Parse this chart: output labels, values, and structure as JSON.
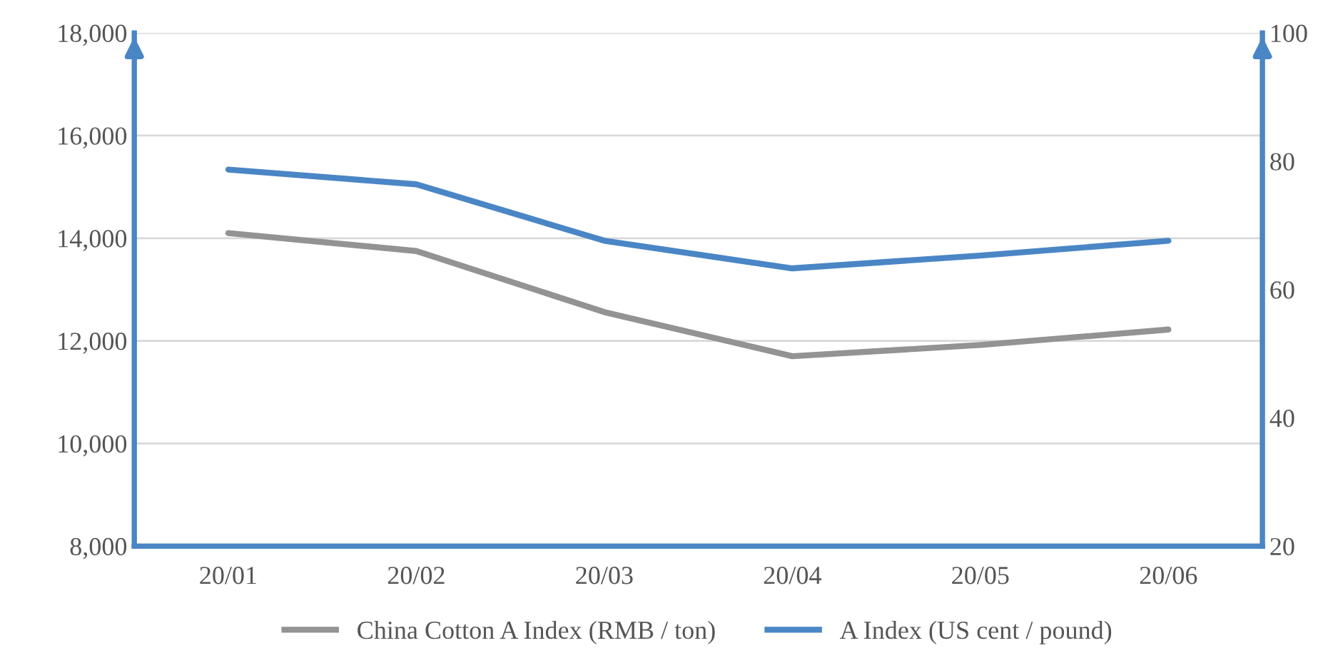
{
  "chart_data": {
    "type": "line",
    "categories": [
      "20/01",
      "20/02",
      "20/03",
      "20/04",
      "20/05",
      "20/06"
    ],
    "series": [
      {
        "name": "China Cotton A Index (RMB / ton)",
        "color": "#939393",
        "values": [
          14100,
          13750,
          12560,
          11700,
          11920,
          12220
        ]
      },
      {
        "name": "A Index (US cent / pound)",
        "color": "#4a86c5",
        "values": [
          78.7,
          76.4,
          67.6,
          63.3,
          65.3,
          67.6
        ],
        "axis": "y2"
      }
    ],
    "ylim": [
      8000,
      18000
    ],
    "yticks": [
      {
        "value": 8000,
        "label": "8,000"
      },
      {
        "value": 10000,
        "label": "10,000"
      },
      {
        "value": 12000,
        "label": "12,000"
      },
      {
        "value": 14000,
        "label": "14,000"
      },
      {
        "value": 16000,
        "label": "16,000"
      },
      {
        "value": 18000,
        "label": "18,000"
      }
    ],
    "y2lim": [
      20,
      100
    ],
    "y2ticks": [
      20,
      40,
      60,
      80,
      100
    ],
    "grid": "y",
    "legend": "bottom",
    "marker": "none",
    "line_style": "solid"
  }
}
